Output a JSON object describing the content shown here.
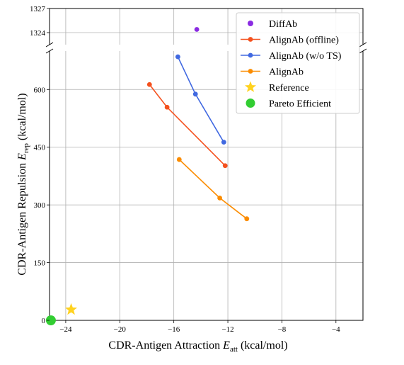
{
  "chart_data": {
    "type": "scatter",
    "xlabel": "CDR-Antigen Attraction E_att (kcal/mol)",
    "xlabel_parts": {
      "pre": "CDR-Antigen Attraction ",
      "sym": "E",
      "sub": "att",
      "post": " (kcal/mol)"
    },
    "ylabel": "CDR-Antigen Repulsion E_rep (kcal/mol)",
    "ylabel_parts": {
      "pre": "CDR-Antigen Repulsion ",
      "sym": "E",
      "sub": "rep",
      "post": " (kcal/mol)"
    },
    "xlim": [
      -25.2,
      -2.0
    ],
    "xticks": [
      -24,
      -20,
      -16,
      -12,
      -8,
      -4
    ],
    "xtick_labels": [
      "−24",
      "−20",
      "−16",
      "−12",
      "−8",
      "−4"
    ],
    "ylim_lower": [
      0,
      700
    ],
    "yticks_lower": [
      0,
      150,
      300,
      450,
      600
    ],
    "ytick_labels_lower": [
      "0",
      "150",
      "300",
      "450",
      "600"
    ],
    "ylim_upper": [
      1322.5,
      1327
    ],
    "yticks_upper": [
      1324,
      1327
    ],
    "ytick_labels_upper": [
      "1324",
      "1327"
    ],
    "grid": true,
    "broken_y_axis": true,
    "legend_position": "top-right",
    "series": [
      {
        "name": "DiffAb",
        "color": "#8a2be2",
        "style": "marker",
        "marker": "circle",
        "points": [
          [
            -14.3,
            1324.4
          ]
        ]
      },
      {
        "name": "AlignAb (offline)",
        "color": "#f4511e",
        "style": "line-marker",
        "marker": "circle",
        "points": [
          [
            -17.8,
            613
          ],
          [
            -16.5,
            554
          ],
          [
            -12.2,
            402
          ]
        ]
      },
      {
        "name": "AlignAb (w/o TS)",
        "color": "#4169e1",
        "style": "line-marker",
        "marker": "circle",
        "points": [
          [
            -15.7,
            685
          ],
          [
            -14.4,
            588
          ],
          [
            -12.3,
            463
          ]
        ]
      },
      {
        "name": "AlignAb",
        "color": "#fb8c00",
        "style": "line-marker",
        "marker": "circle",
        "points": [
          [
            -15.6,
            418
          ],
          [
            -12.6,
            318
          ],
          [
            -10.6,
            264
          ]
        ]
      },
      {
        "name": "Reference",
        "color": "#ffd21f",
        "style": "marker",
        "marker": "star",
        "points": [
          [
            -23.6,
            28
          ]
        ]
      },
      {
        "name": "Pareto Efficient",
        "color": "#32cd32",
        "style": "marker",
        "marker": "big-circle",
        "points": [
          [
            -25.1,
            0
          ]
        ]
      }
    ]
  }
}
